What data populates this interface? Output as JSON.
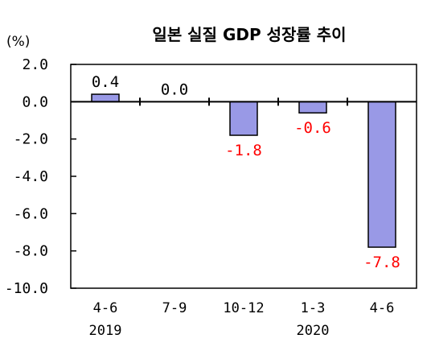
{
  "chart_data": {
    "type": "bar",
    "title": "일본 실질 GDP 성장률 추이",
    "unit_label": "(%)",
    "categories": [
      "4-6",
      "7-9",
      "10-12",
      "1-3",
      "4-6"
    ],
    "year_labels": [
      "2019",
      "",
      "",
      "2020",
      ""
    ],
    "values": [
      0.4,
      0.0,
      -1.8,
      -0.6,
      -7.8
    ],
    "data_labels": [
      "0.4",
      "0.0",
      "-1.8",
      "-0.6",
      "-7.8"
    ],
    "ylim": [
      -10.0,
      2.0
    ],
    "yticks": [
      2.0,
      0.0,
      -2.0,
      -4.0,
      -6.0,
      -8.0,
      -10.0
    ],
    "ytick_labels": [
      "2.0",
      "0.0",
      "-2.0",
      "-4.0",
      "-6.0",
      "-8.0",
      "-10.0"
    ],
    "bar_color": "#9999e6",
    "bar_outline_color": "#000000",
    "positive_label_color": "#000000",
    "negative_label_color": "#ff0000",
    "grid": false,
    "legend": "none"
  }
}
